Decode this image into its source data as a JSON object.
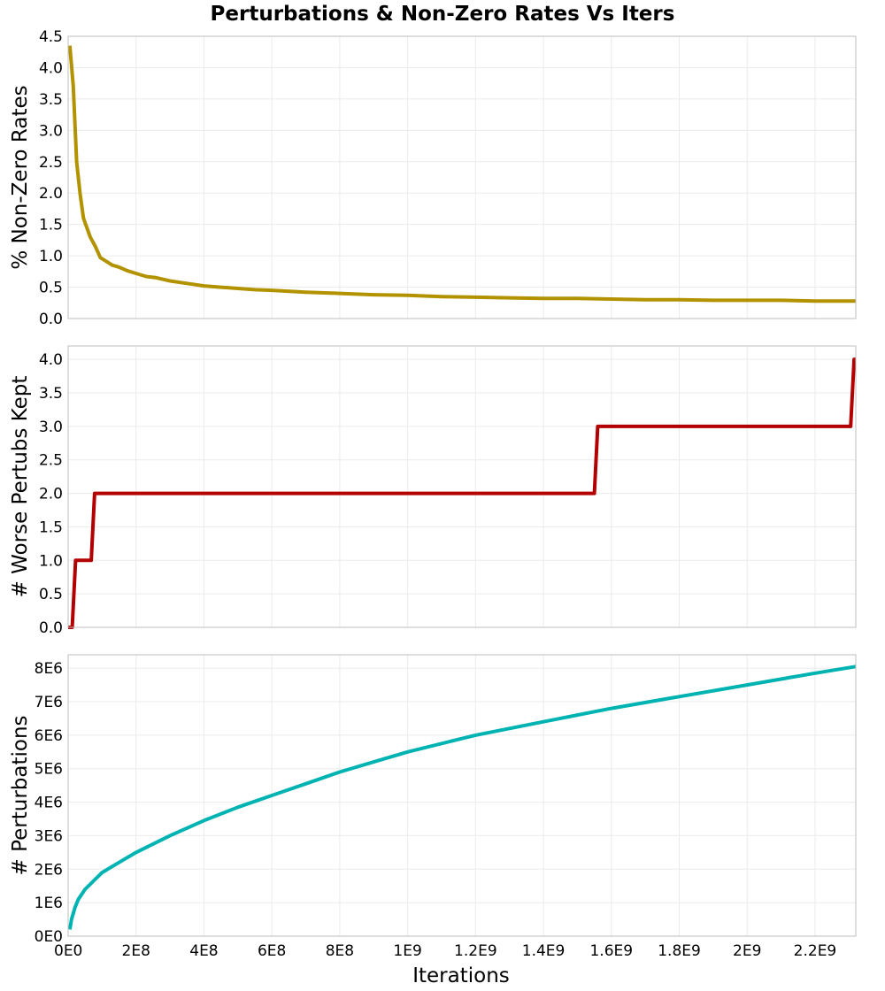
{
  "chart_data": {
    "type": "line",
    "title": "Perturbations & Non-Zero Rates Vs Iters",
    "xlabel": "Iterations",
    "shared_x": {
      "xlim": [
        0,
        2320000000
      ],
      "ticks": [
        0,
        200000000,
        400000000,
        600000000,
        800000000,
        1000000000,
        1200000000,
        1400000000,
        1600000000,
        1800000000,
        2000000000,
        2200000000
      ],
      "tick_labels": [
        "0E0",
        "2E8",
        "4E8",
        "6E8",
        "8E8",
        "1E9",
        "1.2E9",
        "1.4E9",
        "1.6E9",
        "1.8E9",
        "2E9",
        "2.2E9"
      ]
    },
    "panels": [
      {
        "name": "non-zero-rates",
        "ylabel": "% Non-Zero Rates",
        "ylim": [
          0,
          4.5
        ],
        "yticks": [
          0,
          0.5,
          1,
          1.5,
          2,
          2.5,
          3,
          3.5,
          4,
          4.5
        ],
        "ytick_labels": [
          "0.0",
          "0.5",
          "1.0",
          "1.5",
          "2.0",
          "2.5",
          "3.0",
          "3.5",
          "4.0",
          "4.5"
        ],
        "color": "#b39200",
        "grid": true,
        "x": [
          5000000,
          15000000,
          25000000,
          35000000,
          45000000,
          55000000,
          65000000,
          80000000,
          95000000,
          110000000,
          130000000,
          150000000,
          175000000,
          200000000,
          230000000,
          260000000,
          300000000,
          350000000,
          400000000,
          450000000,
          500000000,
          550000000,
          600000000,
          700000000,
          800000000,
          900000000,
          1000000000,
          1100000000,
          1200000000,
          1300000000,
          1400000000,
          1500000000,
          1600000000,
          1700000000,
          1800000000,
          1900000000,
          2000000000,
          2100000000,
          2200000000,
          2320000000
        ],
        "y": [
          4.35,
          3.7,
          2.5,
          2.0,
          1.6,
          1.45,
          1.3,
          1.15,
          0.97,
          0.92,
          0.85,
          0.82,
          0.76,
          0.72,
          0.67,
          0.65,
          0.6,
          0.56,
          0.52,
          0.5,
          0.48,
          0.46,
          0.45,
          0.42,
          0.4,
          0.38,
          0.37,
          0.35,
          0.34,
          0.33,
          0.32,
          0.32,
          0.31,
          0.3,
          0.3,
          0.29,
          0.29,
          0.29,
          0.28,
          0.28
        ]
      },
      {
        "name": "worse-perturbs-kept",
        "ylabel": "# Worse Pertubs Kept",
        "ylim": [
          0,
          4.2
        ],
        "yticks": [
          0,
          0.5,
          1,
          1.5,
          2,
          2.5,
          3,
          3.5,
          4
        ],
        "ytick_labels": [
          "0.0",
          "0.5",
          "1.0",
          "1.5",
          "2.0",
          "2.5",
          "3.0",
          "3.5",
          "4.0"
        ],
        "color": "#b30000",
        "grid": true,
        "x": [
          0,
          12000000,
          22000000,
          68000000,
          78000000,
          1550000000,
          1560000000,
          2305000000,
          2315000000,
          2320000000
        ],
        "y": [
          0,
          0,
          1,
          1,
          2,
          2,
          3,
          3,
          4,
          4
        ]
      },
      {
        "name": "perturbations",
        "ylabel": "# Perturbations",
        "ylim": [
          0,
          8400000
        ],
        "yticks": [
          0,
          1000000,
          2000000,
          3000000,
          4000000,
          5000000,
          6000000,
          7000000,
          8000000
        ],
        "ytick_labels": [
          "0E0",
          "1E6",
          "2E6",
          "3E6",
          "4E6",
          "5E6",
          "6E6",
          "7E6",
          "8E6"
        ],
        "color": "#00b3b3",
        "grid": true,
        "x": [
          5000000,
          10000000,
          20000000,
          30000000,
          50000000,
          75000000,
          100000000,
          150000000,
          200000000,
          250000000,
          300000000,
          400000000,
          500000000,
          600000000,
          700000000,
          800000000,
          900000000,
          1000000000,
          1200000000,
          1400000000,
          1600000000,
          1800000000,
          2000000000,
          2200000000,
          2320000000
        ],
        "y": [
          200000,
          500000,
          850000,
          1100000,
          1400000,
          1650000,
          1900000,
          2200000,
          2500000,
          2750000,
          3000000,
          3450000,
          3850000,
          4200000,
          4550000,
          4900000,
          5200000,
          5500000,
          6000000,
          6400000,
          6800000,
          7150000,
          7500000,
          7850000,
          8050000
        ]
      }
    ]
  }
}
